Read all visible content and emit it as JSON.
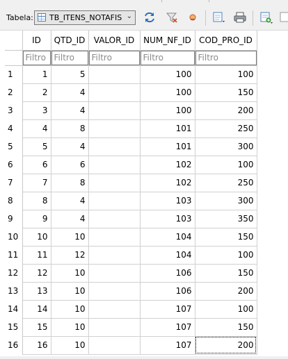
{
  "toolbar": {
    "table_label": "Tabela:",
    "table_selected": "TB_ITENS_NOTAFIS",
    "buttons": [
      {
        "name": "refresh-icon",
        "color": "#2f6db5"
      },
      {
        "name": "clear-filters-icon",
        "color": "#888888"
      },
      {
        "name": "delete-record-icon",
        "color": "#d9534f"
      },
      {
        "name": "new-record-icon",
        "color": "#4a7fc1"
      },
      {
        "name": "print-icon",
        "color": "#555555"
      },
      {
        "name": "export-icon",
        "color": "#3a9a3a"
      }
    ]
  },
  "grid": {
    "columns": [
      "ID",
      "QTD_ID",
      "VALOR_ID",
      "NUM_NF_ID",
      "COD_PRO_ID"
    ],
    "filter_placeholder": "Filtro",
    "rows": [
      {
        "n": "1",
        "cells": [
          "1",
          "5",
          "",
          "100",
          "100"
        ]
      },
      {
        "n": "2",
        "cells": [
          "2",
          "4",
          "",
          "100",
          "150"
        ]
      },
      {
        "n": "3",
        "cells": [
          "3",
          "4",
          "",
          "100",
          "200"
        ]
      },
      {
        "n": "4",
        "cells": [
          "4",
          "8",
          "",
          "101",
          "250"
        ]
      },
      {
        "n": "5",
        "cells": [
          "5",
          "4",
          "",
          "101",
          "300"
        ]
      },
      {
        "n": "6",
        "cells": [
          "6",
          "6",
          "",
          "102",
          "100"
        ]
      },
      {
        "n": "7",
        "cells": [
          "7",
          "8",
          "",
          "102",
          "250"
        ]
      },
      {
        "n": "8",
        "cells": [
          "8",
          "4",
          "",
          "103",
          "300"
        ]
      },
      {
        "n": "9",
        "cells": [
          "9",
          "4",
          "",
          "103",
          "350"
        ]
      },
      {
        "n": "10",
        "cells": [
          "10",
          "10",
          "",
          "104",
          "150"
        ]
      },
      {
        "n": "11",
        "cells": [
          "11",
          "12",
          "",
          "104",
          "100"
        ]
      },
      {
        "n": "12",
        "cells": [
          "12",
          "10",
          "",
          "106",
          "150"
        ]
      },
      {
        "n": "13",
        "cells": [
          "13",
          "10",
          "",
          "106",
          "200"
        ]
      },
      {
        "n": "14",
        "cells": [
          "14",
          "10",
          "",
          "107",
          "100"
        ]
      },
      {
        "n": "15",
        "cells": [
          "15",
          "10",
          "",
          "107",
          "150"
        ]
      },
      {
        "n": "16",
        "cells": [
          "16",
          "10",
          "",
          "107",
          "200"
        ]
      }
    ],
    "selected_cell": {
      "row": 15,
      "col": 4
    }
  }
}
